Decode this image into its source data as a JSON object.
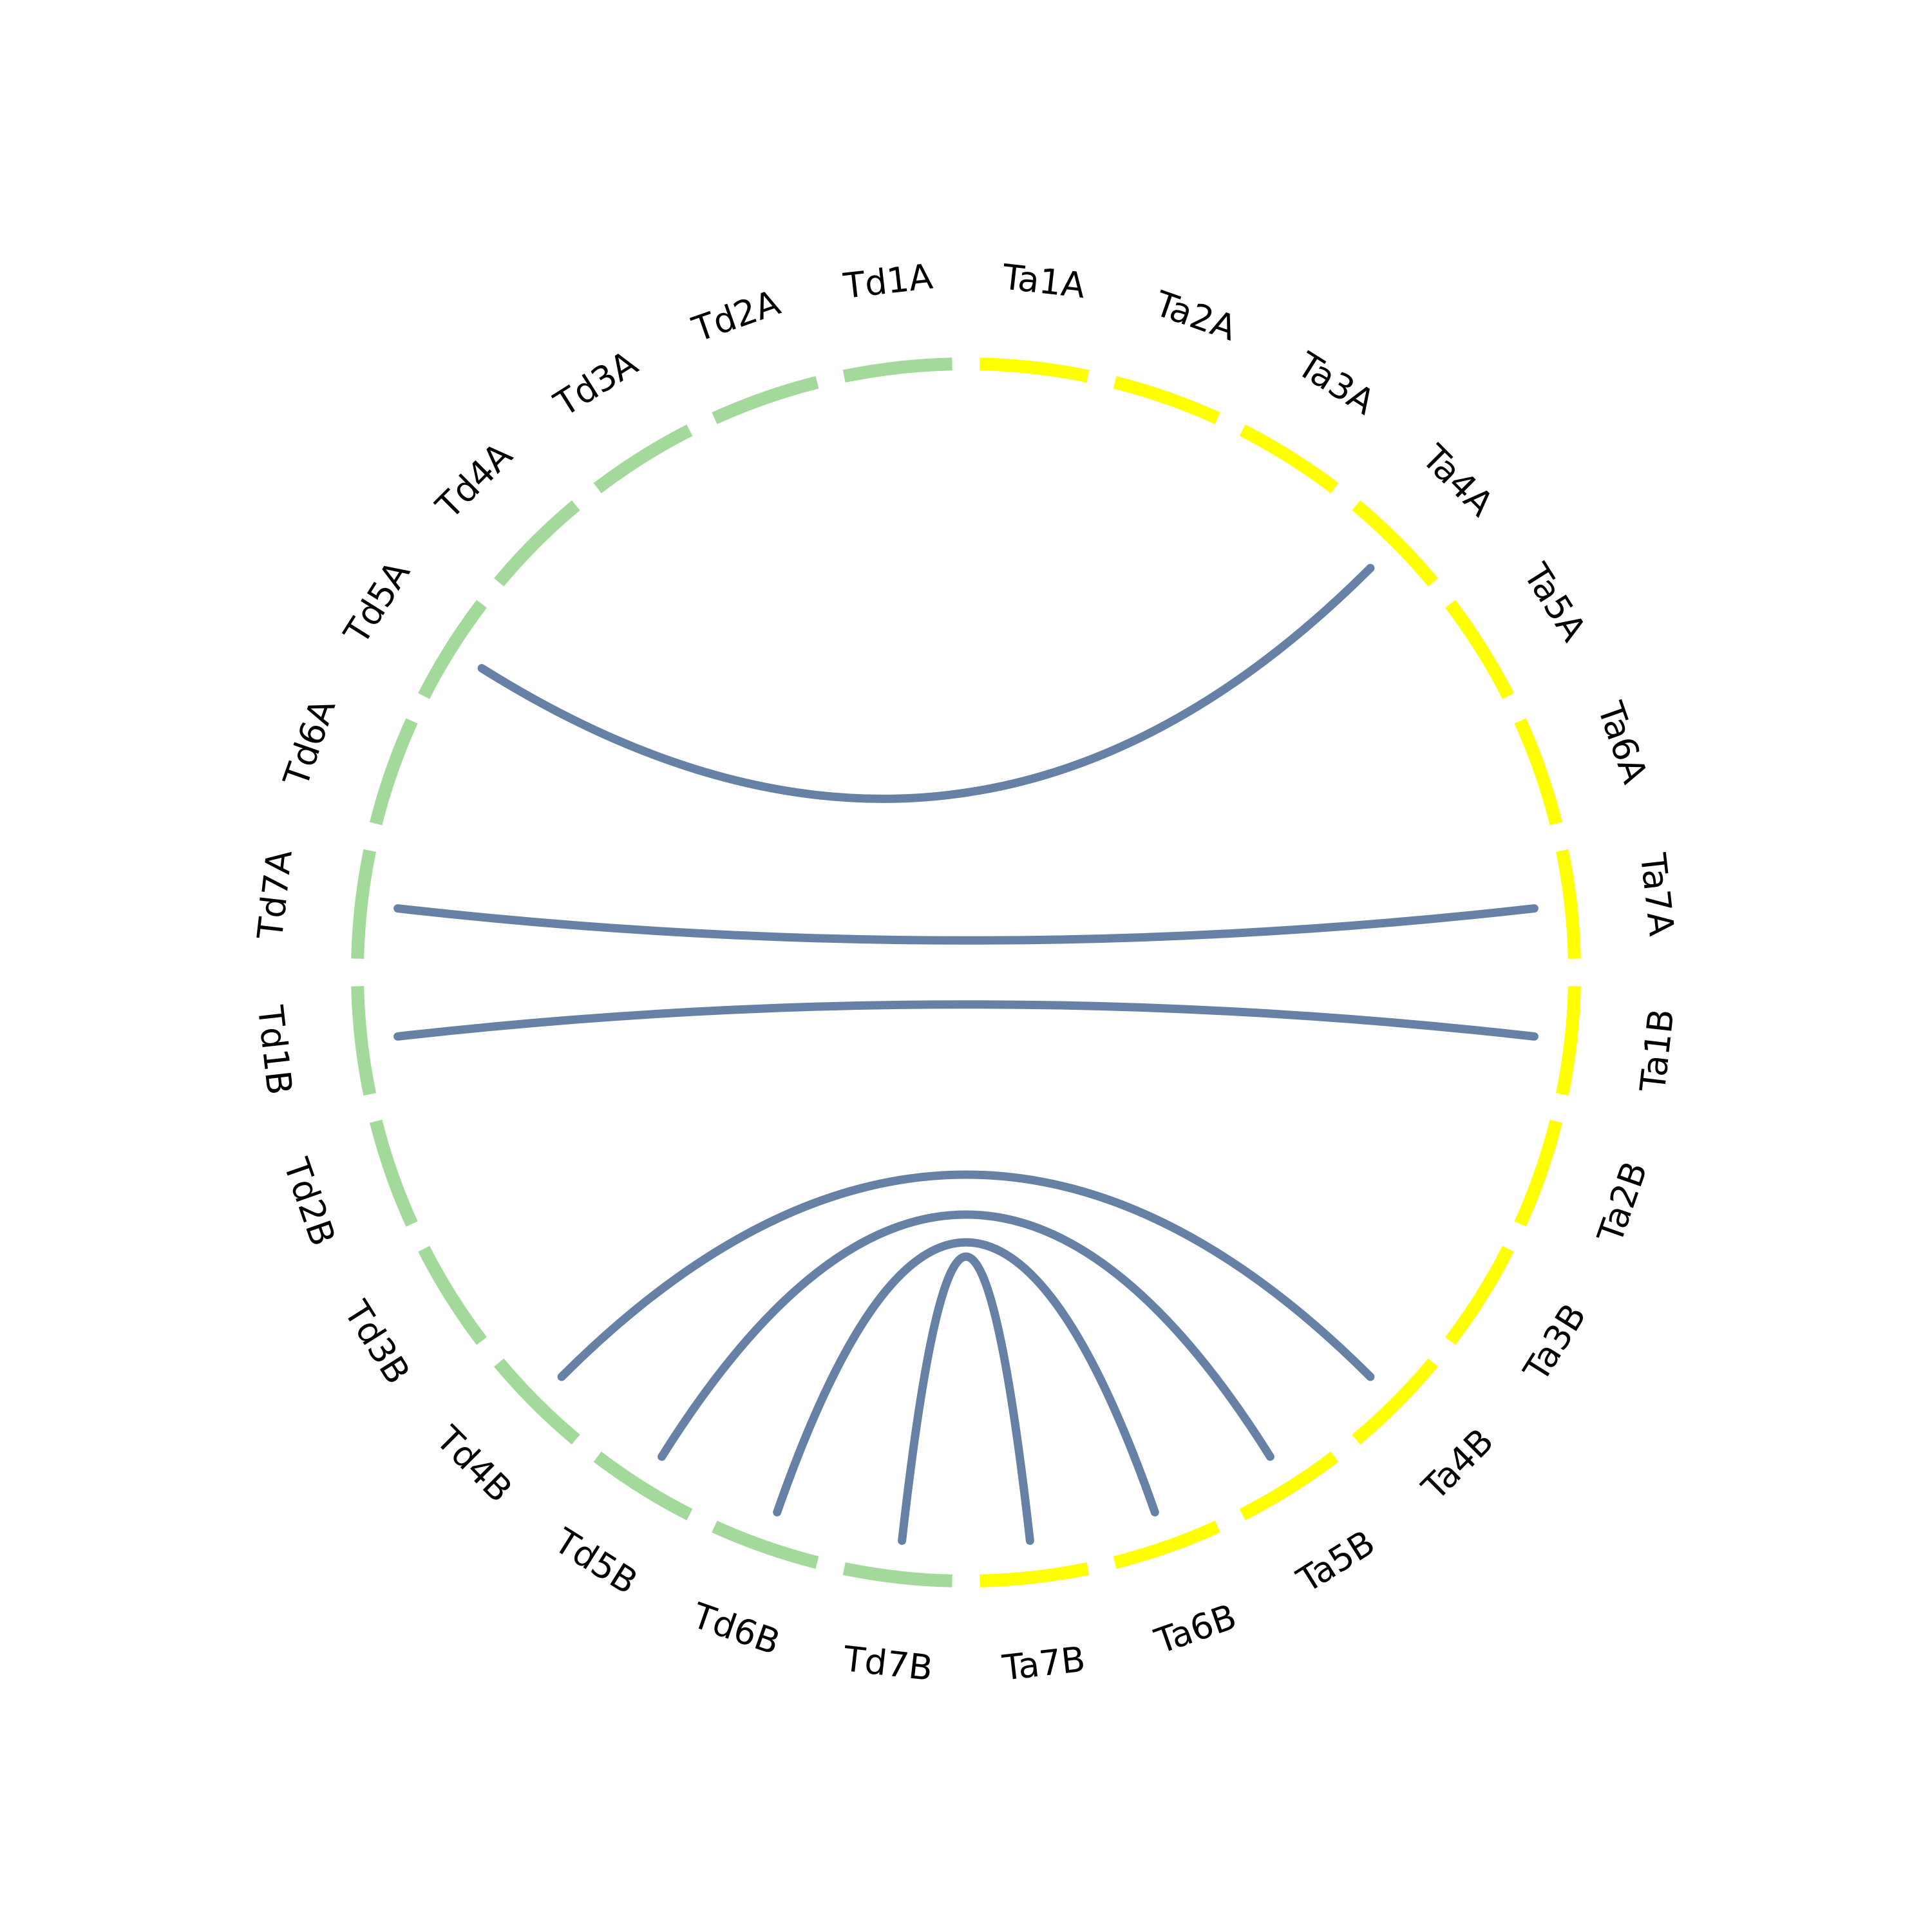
{
  "colors": {
    "td_segment": "#a3d99b",
    "ta_segment": "#ffff00",
    "link": "#6680a6",
    "label": "#000000"
  },
  "chromosomes": [
    {
      "name": "Ta1A",
      "group": "Ta"
    },
    {
      "name": "Ta2A",
      "group": "Ta"
    },
    {
      "name": "Ta3A",
      "group": "Ta"
    },
    {
      "name": "Ta4A",
      "group": "Ta"
    },
    {
      "name": "Ta5A",
      "group": "Ta"
    },
    {
      "name": "Ta6A",
      "group": "Ta"
    },
    {
      "name": "Ta7A",
      "group": "Ta"
    },
    {
      "name": "Ta1B",
      "group": "Ta"
    },
    {
      "name": "Ta2B",
      "group": "Ta"
    },
    {
      "name": "Ta3B",
      "group": "Ta"
    },
    {
      "name": "Ta4B",
      "group": "Ta"
    },
    {
      "name": "Ta5B",
      "group": "Ta"
    },
    {
      "name": "Ta6B",
      "group": "Ta"
    },
    {
      "name": "Ta7B",
      "group": "Ta"
    },
    {
      "name": "Td7B",
      "group": "Td"
    },
    {
      "name": "Td6B",
      "group": "Td"
    },
    {
      "name": "Td5B",
      "group": "Td"
    },
    {
      "name": "Td4B",
      "group": "Td"
    },
    {
      "name": "Td3B",
      "group": "Td"
    },
    {
      "name": "Td2B",
      "group": "Td"
    },
    {
      "name": "Td1B",
      "group": "Td"
    },
    {
      "name": "Td7A",
      "group": "Td"
    },
    {
      "name": "Td6A",
      "group": "Td"
    },
    {
      "name": "Td5A",
      "group": "Td"
    },
    {
      "name": "Td4A",
      "group": "Td"
    },
    {
      "name": "Td3A",
      "group": "Td"
    },
    {
      "name": "Td2A",
      "group": "Td"
    },
    {
      "name": "Td1A",
      "group": "Td"
    }
  ],
  "links": [
    {
      "from": "Td5A",
      "to": "Ta4A"
    },
    {
      "from": "Td7A",
      "to": "Ta7A"
    },
    {
      "from": "Td1B",
      "to": "Ta1B"
    },
    {
      "from": "Td4B",
      "to": "Ta4B"
    },
    {
      "from": "Td5B",
      "to": "Ta5B"
    },
    {
      "from": "Td6B",
      "to": "Ta6B"
    },
    {
      "from": "Td7B",
      "to": "Ta7B"
    }
  ]
}
